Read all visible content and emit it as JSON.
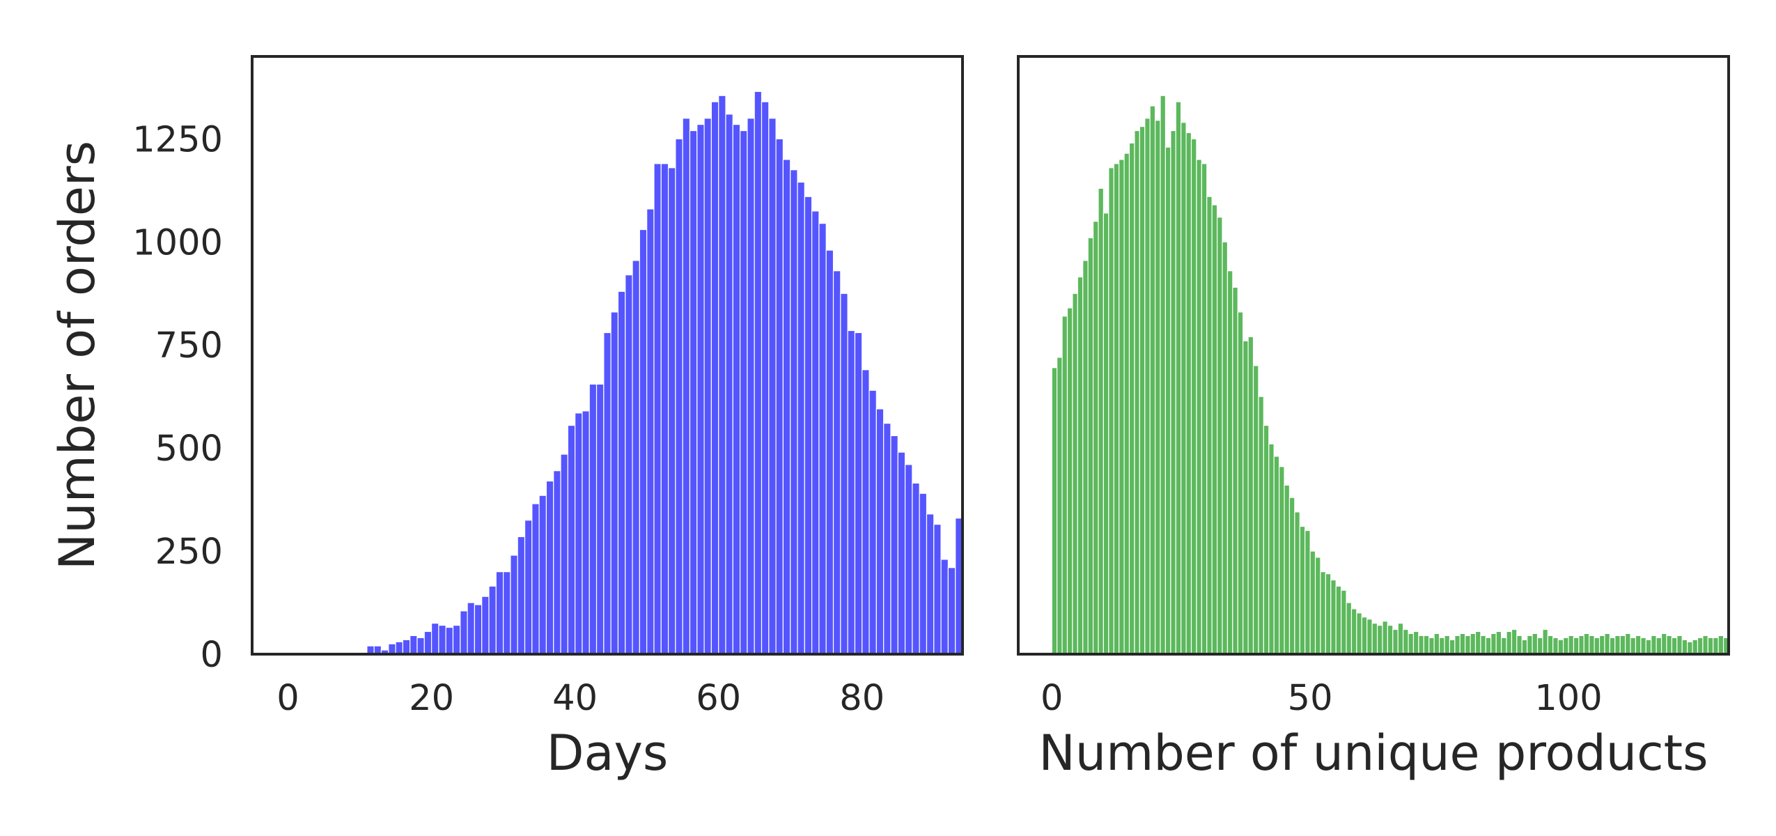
{
  "chart_data": [
    {
      "type": "bar",
      "title": "",
      "xlabel": "Days",
      "ylabel": "Number of orders",
      "xlim": [
        -5,
        94
      ],
      "ylim": [
        0,
        1450
      ],
      "xticks": [
        "0",
        "20",
        "40",
        "60",
        "80"
      ],
      "xtick_values": [
        0,
        20,
        40,
        60,
        80
      ],
      "yticks": [
        "0",
        "250",
        "500",
        "750",
        "1000",
        "1250"
      ],
      "ytick_values": [
        0,
        250,
        500,
        750,
        1000,
        1250
      ],
      "bar_color": "#5555ff",
      "grid": false,
      "series": [
        {
          "x_start": 11,
          "bin_width": 1,
          "values": [
            20,
            20,
            10,
            25,
            30,
            35,
            45,
            40,
            55,
            75,
            70,
            65,
            70,
            105,
            125,
            120,
            140,
            165,
            200,
            200,
            240,
            285,
            325,
            365,
            385,
            420,
            445,
            485,
            555,
            585,
            590,
            655,
            655,
            780,
            830,
            880,
            920,
            955,
            1030,
            1080,
            1190,
            1190,
            1180,
            1250,
            1300,
            1270,
            1285,
            1300,
            1340,
            1355,
            1310,
            1285,
            1270,
            1300,
            1365,
            1340,
            1300,
            1250,
            1200,
            1175,
            1145,
            1110,
            1075,
            1045,
            980,
            930,
            875,
            785,
            780,
            690,
            640,
            595,
            560,
            530,
            490,
            460,
            415,
            390,
            340,
            315,
            230,
            210,
            330
          ]
        }
      ]
    },
    {
      "type": "bar",
      "title": "",
      "xlabel": "Number of unique products",
      "ylabel": "",
      "xlim": [
        -6.5,
        131
      ],
      "ylim": [
        0,
        1450
      ],
      "xticks": [
        "0",
        "50",
        "100"
      ],
      "xtick_values": [
        0,
        50,
        100
      ],
      "yticks": [],
      "bar_color": "#5cb85c",
      "grid": false,
      "series": [
        {
          "x_start": 0,
          "bin_width": 1,
          "values": [
            695,
            720,
            820,
            840,
            875,
            915,
            955,
            1010,
            1050,
            1130,
            1070,
            1180,
            1190,
            1200,
            1215,
            1240,
            1270,
            1280,
            1300,
            1330,
            1295,
            1355,
            1230,
            1270,
            1340,
            1290,
            1265,
            1250,
            1200,
            1190,
            1110,
            1090,
            1060,
            1000,
            930,
            890,
            830,
            760,
            770,
            700,
            625,
            555,
            510,
            480,
            455,
            410,
            380,
            345,
            310,
            300,
            250,
            235,
            200,
            195,
            180,
            165,
            155,
            125,
            110,
            100,
            90,
            85,
            75,
            70,
            80,
            70,
            60,
            75,
            60,
            50,
            55,
            45,
            45,
            40,
            50,
            40,
            45,
            35,
            45,
            50,
            45,
            50,
            55,
            45,
            40,
            50,
            55,
            40,
            55,
            60,
            45,
            35,
            45,
            50,
            40,
            60,
            45,
            40,
            35,
            40,
            45,
            40,
            45,
            50,
            45,
            40,
            45,
            50,
            40,
            45,
            45,
            50,
            40,
            45,
            40,
            35,
            45,
            40,
            50,
            45,
            40,
            45,
            35,
            30,
            35,
            40,
            45,
            40,
            40,
            45,
            40
          ]
        }
      ]
    }
  ]
}
